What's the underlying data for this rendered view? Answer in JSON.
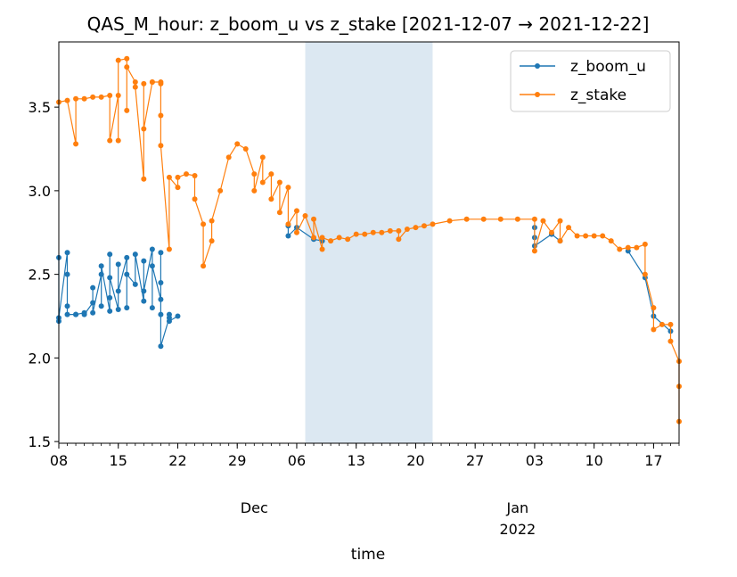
{
  "chart_data": {
    "type": "line",
    "title": "QAS_M_hour: z_boom_u vs z_stake  [2021-12-07 → 2021-12-22]",
    "xlabel": "time",
    "ylabel": "",
    "x_range": [
      "2021-11-08",
      "2022-01-20"
    ],
    "ylim": [
      1.49,
      3.89
    ],
    "y_ticks": [
      1.5,
      2.0,
      2.5,
      3.0,
      3.5
    ],
    "y_tick_labels": [
      "1.5",
      "2.0",
      "2.5",
      "3.0",
      "3.5"
    ],
    "x_ticks": [
      {
        "date": "2021-11-08",
        "label": "08"
      },
      {
        "date": "2021-11-15",
        "label": "15"
      },
      {
        "date": "2021-11-22",
        "label": "22"
      },
      {
        "date": "2021-11-29",
        "label": "29"
      },
      {
        "date": "2021-12-06",
        "label": "06"
      },
      {
        "date": "2021-12-13",
        "label": "13"
      },
      {
        "date": "2021-12-20",
        "label": "20"
      },
      {
        "date": "2021-12-27",
        "label": "27"
      },
      {
        "date": "2022-01-03",
        "label": "03"
      },
      {
        "date": "2022-01-10",
        "label": "10"
      },
      {
        "date": "2022-01-17",
        "label": "17"
      }
    ],
    "month_labels": [
      {
        "date": "2021-12-01",
        "label": "Dec"
      },
      {
        "date": "2022-01-01",
        "label": "Jan"
      }
    ],
    "year_label": {
      "date": "2022-01-01",
      "label": "2022"
    },
    "shaded_span": {
      "start": "2021-12-07",
      "end": "2021-12-22",
      "color": "#dce8f2"
    },
    "grid": false,
    "legend_position": "top-right",
    "series": [
      {
        "name": "z_boom_u",
        "color": "#1f77b4",
        "points": [
          [
            "2021-11-08",
            2.22
          ],
          [
            "2021-11-08",
            2.6
          ],
          [
            "2021-11-08",
            2.24
          ],
          [
            "2021-11-09",
            2.63
          ],
          [
            "2021-11-09",
            2.31
          ],
          [
            "2021-11-09",
            2.5
          ],
          [
            "2021-11-09",
            2.26
          ],
          [
            "2021-11-10",
            2.26
          ],
          [
            "2021-11-10",
            2.26
          ],
          [
            "2021-11-11",
            2.27
          ],
          [
            "2021-11-11",
            2.26
          ],
          [
            "2021-11-12",
            2.33
          ],
          [
            "2021-11-12",
            2.42
          ],
          [
            "2021-11-12",
            2.27
          ],
          [
            "2021-11-13",
            2.5
          ],
          [
            "2021-11-13",
            2.31
          ],
          [
            "2021-11-13",
            2.55
          ],
          [
            "2021-11-14",
            2.28
          ],
          [
            "2021-11-14",
            2.62
          ],
          [
            "2021-11-14",
            2.36
          ],
          [
            "2021-11-14",
            2.48
          ],
          [
            "2021-11-15",
            2.29
          ],
          [
            "2021-11-15",
            2.56
          ],
          [
            "2021-11-15",
            2.4
          ],
          [
            "2021-11-16",
            2.6
          ],
          [
            "2021-11-16",
            2.3
          ],
          [
            "2021-11-16",
            2.5
          ],
          [
            "2021-11-17",
            2.44
          ],
          [
            "2021-11-17",
            2.62
          ],
          [
            "2021-11-18",
            2.34
          ],
          [
            "2021-11-18",
            2.58
          ],
          [
            "2021-11-18",
            2.4
          ],
          [
            "2021-11-19",
            2.65
          ],
          [
            "2021-11-19",
            2.3
          ],
          [
            "2021-11-19",
            2.55
          ],
          [
            "2021-11-20",
            2.35
          ],
          [
            "2021-11-20",
            2.63
          ],
          [
            "2021-11-20",
            2.45
          ],
          [
            "2021-11-20",
            2.26
          ],
          [
            "2021-11-20",
            2.07
          ],
          [
            "2021-11-21",
            2.24
          ],
          [
            "2021-11-21",
            2.26
          ],
          [
            "2021-11-21",
            2.22
          ],
          [
            "2021-11-22",
            2.25
          ],
          [
            "2021-12-05",
            2.79
          ],
          [
            "2021-12-05",
            2.73
          ],
          [
            "2021-12-06",
            2.78
          ],
          [
            "2021-12-08",
            2.71
          ],
          [
            "2021-12-09",
            2.7
          ],
          [
            "2022-01-03",
            2.72
          ],
          [
            "2022-01-03",
            2.78
          ],
          [
            "2022-01-03",
            2.67
          ],
          [
            "2022-01-05",
            2.74
          ],
          [
            "2022-01-06",
            2.7
          ],
          [
            "2022-01-14",
            2.64
          ],
          [
            "2022-01-16",
            2.48
          ],
          [
            "2022-01-17",
            2.25
          ],
          [
            "2022-01-19",
            2.16
          ]
        ]
      },
      {
        "name": "z_stake",
        "color": "#ff7f0e",
        "points": [
          [
            "2021-11-08",
            3.53
          ],
          [
            "2021-11-09",
            3.54
          ],
          [
            "2021-11-10",
            3.28
          ],
          [
            "2021-11-10",
            3.55
          ],
          [
            "2021-11-11",
            3.55
          ],
          [
            "2021-11-12",
            3.56
          ],
          [
            "2021-11-13",
            3.56
          ],
          [
            "2021-11-14",
            3.57
          ],
          [
            "2021-11-14",
            3.3
          ],
          [
            "2021-11-15",
            3.57
          ],
          [
            "2021-11-15",
            3.3
          ],
          [
            "2021-11-15",
            3.78
          ],
          [
            "2021-11-16",
            3.79
          ],
          [
            "2021-11-16",
            3.48
          ],
          [
            "2021-11-16",
            3.74
          ],
          [
            "2021-11-17",
            3.65
          ],
          [
            "2021-11-17",
            3.62
          ],
          [
            "2021-11-18",
            3.07
          ],
          [
            "2021-11-18",
            3.64
          ],
          [
            "2021-11-18",
            3.37
          ],
          [
            "2021-11-19",
            3.65
          ],
          [
            "2021-11-19",
            3.65
          ],
          [
            "2021-11-20",
            3.65
          ],
          [
            "2021-11-20",
            3.64
          ],
          [
            "2021-11-20",
            3.45
          ],
          [
            "2021-11-20",
            3.27
          ],
          [
            "2021-11-21",
            2.65
          ],
          [
            "2021-11-21",
            3.08
          ],
          [
            "2021-11-22",
            3.02
          ],
          [
            "2021-11-22",
            3.08
          ],
          [
            "2021-11-23",
            3.1
          ],
          [
            "2021-11-24",
            3.09
          ],
          [
            "2021-11-24",
            2.95
          ],
          [
            "2021-11-25",
            2.8
          ],
          [
            "2021-11-25",
            2.55
          ],
          [
            "2021-11-26",
            2.7
          ],
          [
            "2021-11-26",
            2.82
          ],
          [
            "2021-11-27",
            3.0
          ],
          [
            "2021-11-28",
            3.2
          ],
          [
            "2021-11-29",
            3.28
          ],
          [
            "2021-11-30",
            3.25
          ],
          [
            "2021-12-01",
            3.1
          ],
          [
            "2021-12-01",
            3.0
          ],
          [
            "2021-12-02",
            3.2
          ],
          [
            "2021-12-02",
            3.05
          ],
          [
            "2021-12-03",
            3.1
          ],
          [
            "2021-12-03",
            2.95
          ],
          [
            "2021-12-04",
            3.05
          ],
          [
            "2021-12-04",
            2.87
          ],
          [
            "2021-12-05",
            3.02
          ],
          [
            "2021-12-05",
            2.8
          ],
          [
            "2021-12-06",
            2.88
          ],
          [
            "2021-12-06",
            2.75
          ],
          [
            "2021-12-07",
            2.85
          ],
          [
            "2021-12-08",
            2.72
          ],
          [
            "2021-12-08",
            2.83
          ],
          [
            "2021-12-09",
            2.65
          ],
          [
            "2021-12-09",
            2.72
          ],
          [
            "2021-12-10",
            2.7
          ],
          [
            "2021-12-11",
            2.72
          ],
          [
            "2021-12-12",
            2.71
          ],
          [
            "2021-12-13",
            2.74
          ],
          [
            "2021-12-14",
            2.74
          ],
          [
            "2021-12-15",
            2.75
          ],
          [
            "2021-12-16",
            2.75
          ],
          [
            "2021-12-17",
            2.76
          ],
          [
            "2021-12-18",
            2.76
          ],
          [
            "2021-12-18",
            2.71
          ],
          [
            "2021-12-19",
            2.77
          ],
          [
            "2021-12-20",
            2.78
          ],
          [
            "2021-12-21",
            2.79
          ],
          [
            "2021-12-22",
            2.8
          ],
          [
            "2021-12-24",
            2.82
          ],
          [
            "2021-12-26",
            2.83
          ],
          [
            "2021-12-28",
            2.83
          ],
          [
            "2021-12-30",
            2.83
          ],
          [
            "2022-01-01",
            2.83
          ],
          [
            "2022-01-03",
            2.83
          ],
          [
            "2022-01-03",
            2.64
          ],
          [
            "2022-01-04",
            2.82
          ],
          [
            "2022-01-05",
            2.75
          ],
          [
            "2022-01-06",
            2.82
          ],
          [
            "2022-01-06",
            2.7
          ],
          [
            "2022-01-07",
            2.78
          ],
          [
            "2022-01-08",
            2.73
          ],
          [
            "2022-01-09",
            2.73
          ],
          [
            "2022-01-10",
            2.73
          ],
          [
            "2022-01-11",
            2.73
          ],
          [
            "2022-01-12",
            2.7
          ],
          [
            "2022-01-13",
            2.65
          ],
          [
            "2022-01-14",
            2.66
          ],
          [
            "2022-01-15",
            2.66
          ],
          [
            "2022-01-16",
            2.68
          ],
          [
            "2022-01-16",
            2.5
          ],
          [
            "2022-01-17",
            2.3
          ],
          [
            "2022-01-17",
            2.17
          ],
          [
            "2022-01-18",
            2.2
          ],
          [
            "2022-01-19",
            2.2
          ],
          [
            "2022-01-19",
            2.1
          ],
          [
            "2022-01-20",
            1.98
          ],
          [
            "2022-01-20",
            1.83
          ],
          [
            "2022-01-20",
            1.62
          ]
        ]
      }
    ]
  }
}
